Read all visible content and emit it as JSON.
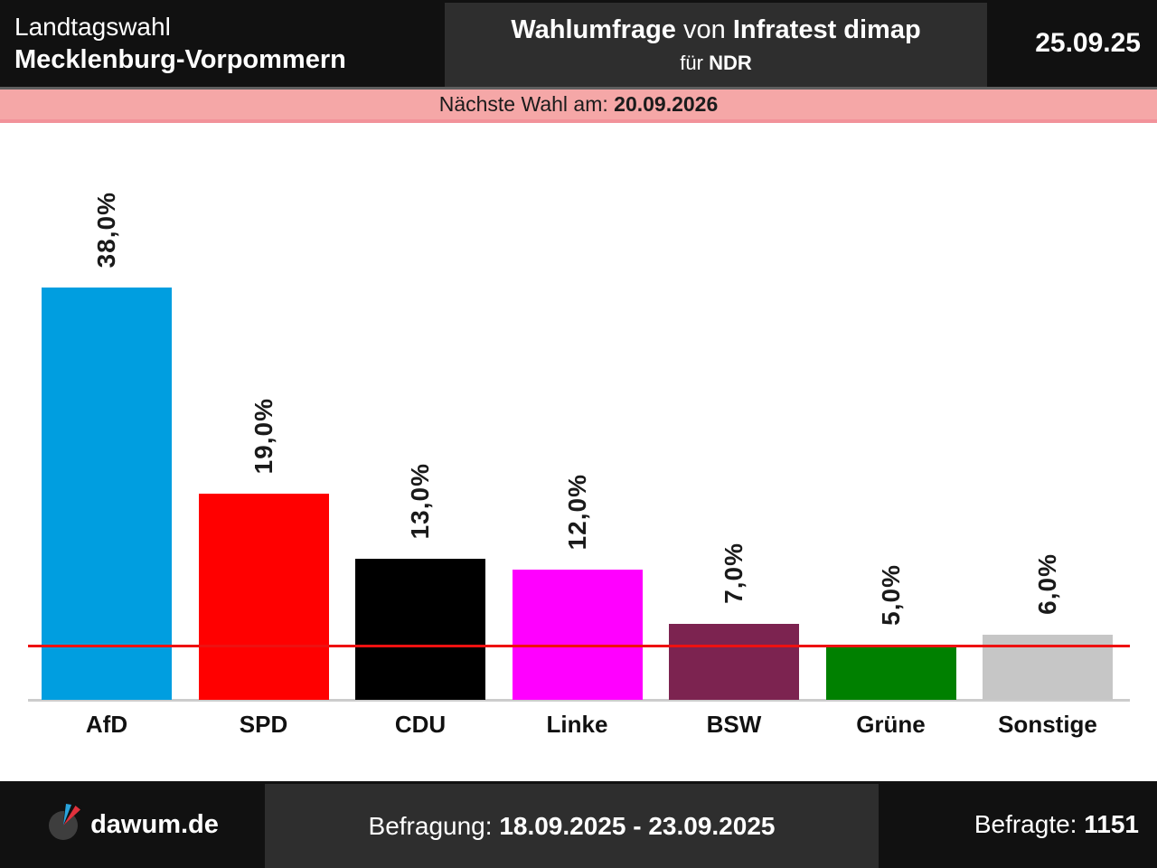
{
  "header": {
    "election_type": "Landtagswahl",
    "region": "Mecklenburg-Vorpommern",
    "survey_word": "Wahlumfrage",
    "connector": "von",
    "institute": "Infratest dimap",
    "for_word": "für",
    "client": "NDR",
    "publish_date": "25.09.25"
  },
  "banner": {
    "next_election_label": "Nächste Wahl am:",
    "next_election_date": "20.09.2026"
  },
  "chart_data": {
    "type": "bar",
    "title": "Wahlumfrage von Infratest dimap für NDR",
    "categories": [
      "AfD",
      "SPD",
      "CDU",
      "Linke",
      "BSW",
      "Grüne",
      "Sonstige"
    ],
    "values": [
      38.0,
      19.0,
      13.0,
      12.0,
      7.0,
      5.0,
      6.0
    ],
    "value_labels": [
      "38,0%",
      "19,0%",
      "13,0%",
      "12,0%",
      "7,0%",
      "5,0%",
      "6,0%"
    ],
    "bar_colors": [
      "#009ee0",
      "#ff0000",
      "#000000",
      "#ff00ff",
      "#7c2350",
      "#008000",
      "#c6c6c6"
    ],
    "value_label_rotation_deg": 90,
    "threshold": {
      "value": 5.0,
      "color": "#ee1111",
      "meaning": "5%-Hürde"
    },
    "ylim": [
      0,
      40
    ],
    "grid": false,
    "legend": "none",
    "xlabel": "",
    "ylabel": ""
  },
  "footer": {
    "brand": "dawum.de",
    "survey_period_label": "Befragung:",
    "survey_period": "18.09.2025 - 23.09.2025",
    "respondents_label": "Befragte:",
    "respondents_count": "1151"
  },
  "colors": {
    "header_black": "#111111",
    "panel_gray": "#2e2e2e",
    "banner_pink": "#f5a7a7",
    "banner_pink_border": "#f2929a",
    "axis_line_gray": "#cccccc",
    "threshold_red": "#ee1111"
  }
}
